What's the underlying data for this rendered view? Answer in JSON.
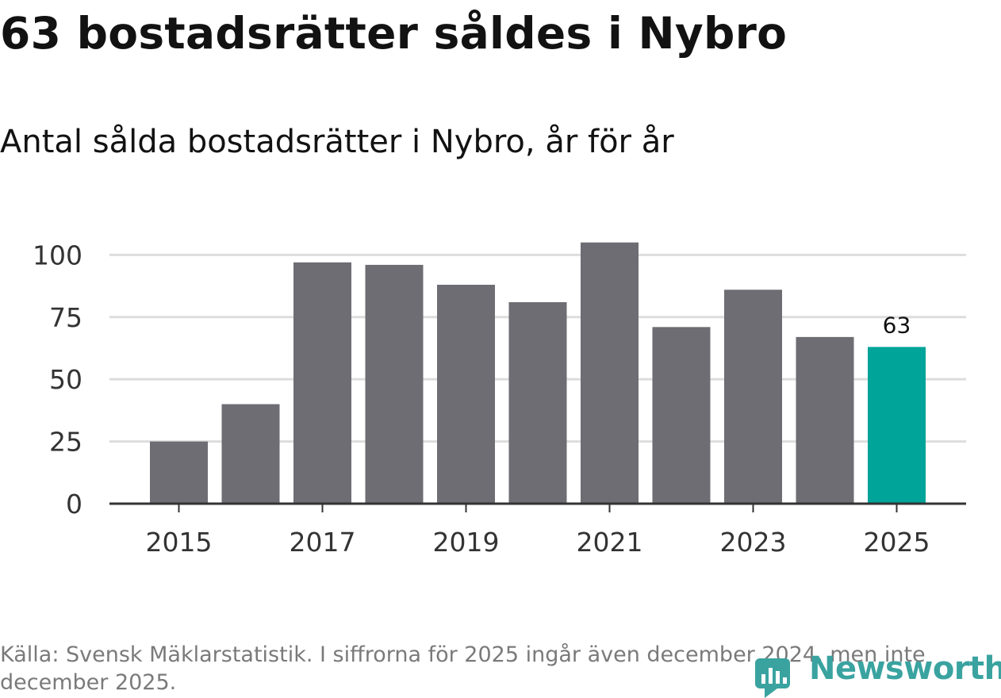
{
  "title": "63 bostadsrätter såldes i Nybro",
  "subtitle": "Antal sålda bostadsrätter i Nybro, år för år",
  "source": "Källa: Svensk Mäklarstatistik. I siffrorna för 2025 ingår även december 2024, men inte december 2025.",
  "brand": "Newsworthy",
  "colors": {
    "bar": "#6e6d73",
    "highlight": "#00a499",
    "grid": "#dddddd",
    "axis": "#333333"
  },
  "chart_data": {
    "type": "bar",
    "title": "Antal sålda bostadsrätter i Nybro, år för år",
    "xlabel": "",
    "ylabel": "",
    "categories": [
      "2015",
      "2016",
      "2017",
      "2018",
      "2019",
      "2020",
      "2021",
      "2022",
      "2023",
      "2024",
      "2025"
    ],
    "values": [
      25,
      40,
      97,
      96,
      88,
      81,
      105,
      71,
      86,
      67,
      63
    ],
    "ylim": [
      0,
      110
    ],
    "yticks": [
      0,
      25,
      50,
      75,
      100
    ],
    "xtick_labels": [
      "2015",
      "2017",
      "2019",
      "2021",
      "2023",
      "2025"
    ],
    "highlight": "2025",
    "annotations": [
      {
        "category": "2025",
        "text": "63"
      }
    ],
    "grid": true
  }
}
